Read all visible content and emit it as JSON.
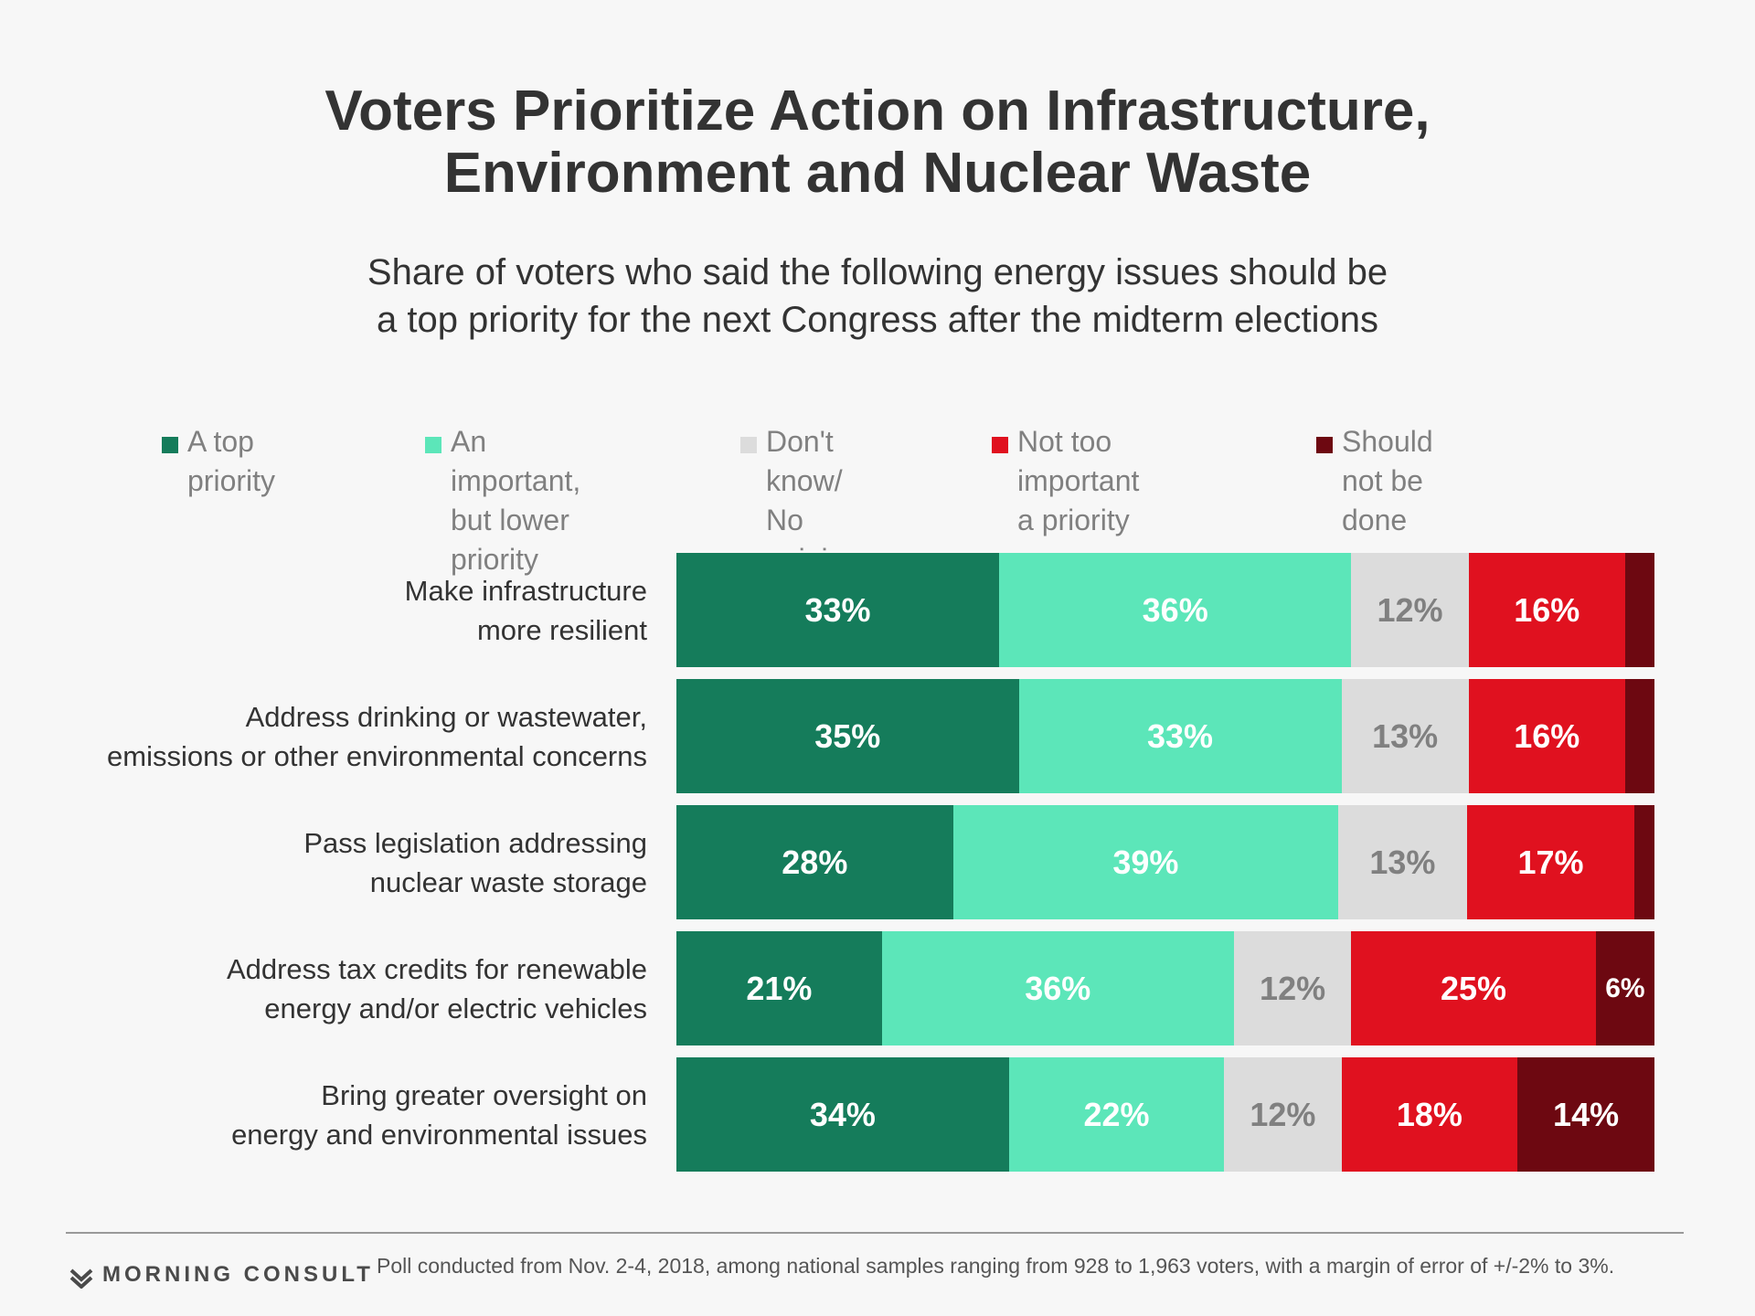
{
  "chart_data": {
    "type": "bar",
    "orientation": "horizontal",
    "stacked": true,
    "title": "Voters Prioritize Action on Infrastructure,\nEnvironment and Nuclear Waste",
    "subtitle": "Share of voters who said the following energy issues should be\na top priority for the next Congress after the midterm elections",
    "categories": [
      "Make infrastructure\nmore resilient",
      "Address drinking or wastewater,\nemissions or other environmental concerns",
      "Pass legislation addressing\nnuclear waste storage",
      "Address tax credits for renewable\nenergy and/or electric vehicles",
      "Bring greater oversight on\nenergy and environmental issues"
    ],
    "series": [
      {
        "name": "A top priority",
        "legend_label": "A top priority",
        "color": "#157c5b",
        "label_color": "#ffffff",
        "values": [
          33,
          35,
          28,
          21,
          34
        ],
        "labels": [
          "33%",
          "35%",
          "28%",
          "21%",
          "34%"
        ]
      },
      {
        "name": "An important, but lower priority",
        "legend_label": "An important,\nbut lower priority",
        "color": "#5ce6b9",
        "label_color": "#ffffff",
        "values": [
          36,
          33,
          39,
          36,
          22
        ],
        "labels": [
          "36%",
          "33%",
          "39%",
          "36%",
          "22%"
        ]
      },
      {
        "name": "Don't know/ No opinion",
        "legend_label": "Don't know/\nNo opinion",
        "color": "#dcdcdc",
        "label_color": "#808080",
        "values": [
          12,
          13,
          13,
          12,
          12
        ],
        "labels": [
          "12%",
          "13%",
          "13%",
          "12%",
          "12%"
        ]
      },
      {
        "name": "Not too important a priority",
        "legend_label": "Not too important\na priority",
        "color": "#e0111f",
        "label_color": "#ffffff",
        "values": [
          16,
          16,
          17,
          25,
          18
        ],
        "labels": [
          "16%",
          "16%",
          "17%",
          "25%",
          "18%"
        ]
      },
      {
        "name": "Should not be done",
        "legend_label": "Should not be done",
        "color": "#6d0811",
        "label_color": "#ffffff",
        "values": [
          3,
          3,
          2,
          6,
          14
        ],
        "labels": [
          "",
          "",
          "",
          "6%",
          "14%"
        ]
      }
    ],
    "xlim": [
      0,
      100
    ],
    "legend": "top",
    "grid": false
  },
  "footer": {
    "brand": "MORNING CONSULT",
    "note": "Poll conducted from Nov. 2-4, 2018, among national samples ranging from 928 to 1,963 voters, with a margin of error of +/-2% to 3%."
  }
}
